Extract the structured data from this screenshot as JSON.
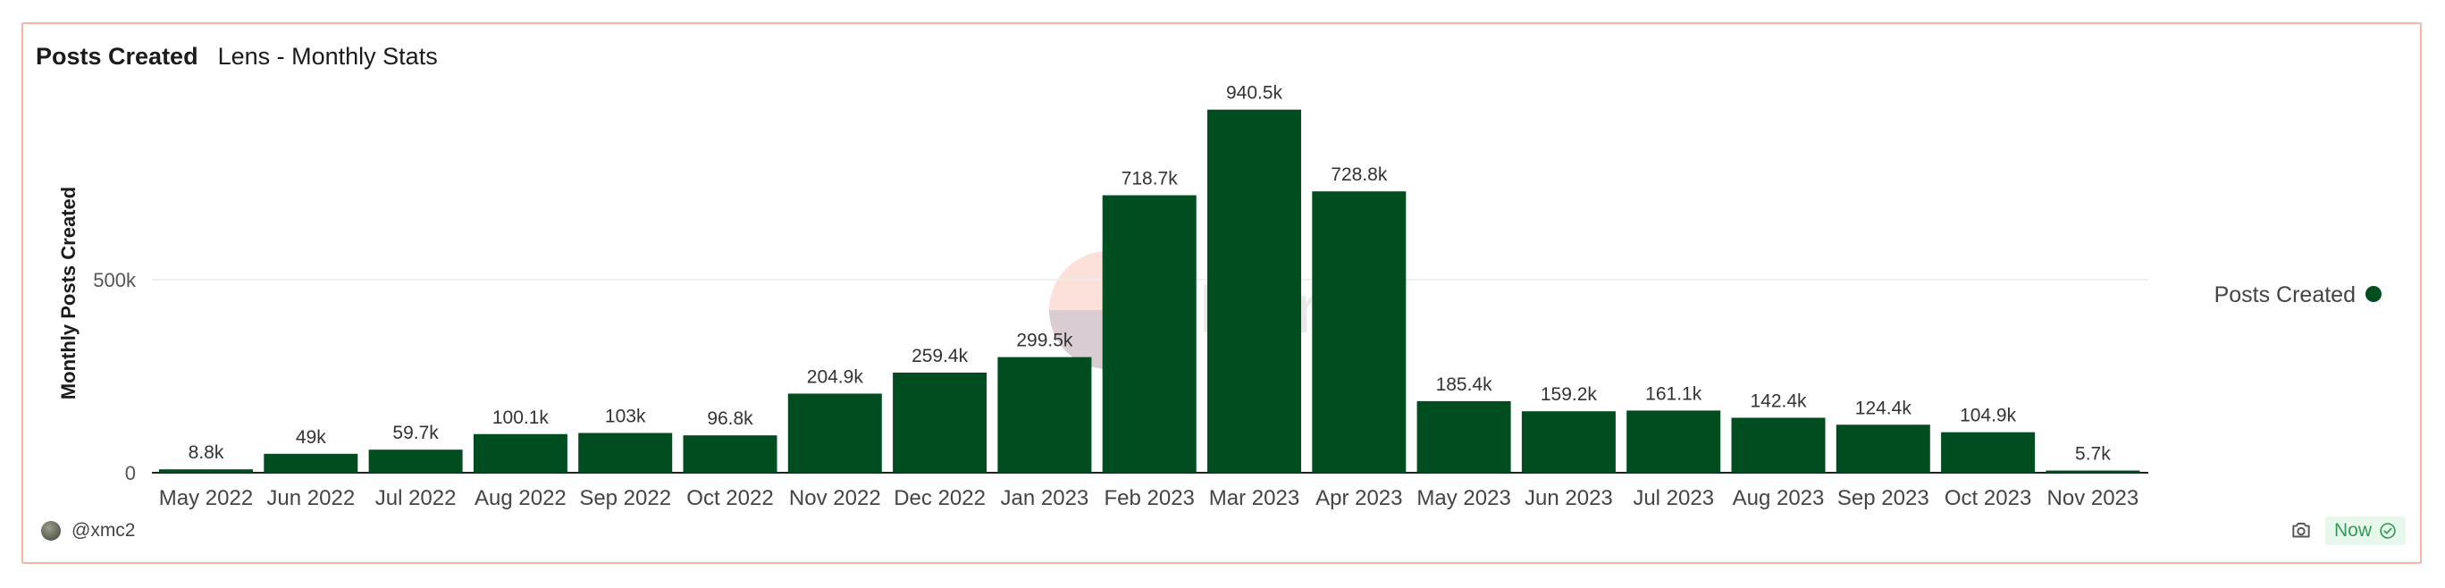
{
  "header": {
    "title": "Posts Created",
    "subtitle": "Lens - Monthly Stats"
  },
  "footer": {
    "author": "@xmc2",
    "status": "Now"
  },
  "icons": {
    "avatar": "avatar-icon",
    "camera": "camera-icon",
    "check": "check-circle-icon"
  },
  "colors": {
    "bar": "#004d1f",
    "accent": "#2e9d55",
    "border": "#f4b5a5"
  },
  "chart_data": {
    "type": "bar",
    "title": "Posts Created",
    "ylabel": "Monthly Posts Created",
    "xlabel": "",
    "ylim": [
      0,
      1000000
    ],
    "yticks": [
      {
        "value": 0,
        "label": "0"
      },
      {
        "value": 500000,
        "label": "500k"
      }
    ],
    "legend": {
      "label": "Posts Created",
      "position": "right"
    },
    "categories": [
      "May 2022",
      "Jun 2022",
      "Jul 2022",
      "Aug 2022",
      "Sep 2022",
      "Oct 2022",
      "Nov 2022",
      "Dec 2022",
      "Jan 2023",
      "Feb 2023",
      "Mar 2023",
      "Apr 2023",
      "May 2023",
      "Jun 2023",
      "Jul 2023",
      "Aug 2023",
      "Sep 2023",
      "Oct 2023",
      "Nov 2023"
    ],
    "values": [
      8800,
      49000,
      59700,
      100100,
      103000,
      96800,
      204900,
      259400,
      299500,
      718700,
      940500,
      728800,
      185400,
      159200,
      161100,
      142400,
      124400,
      104900,
      5700
    ],
    "data_labels": [
      "8.8k",
      "49k",
      "59.7k",
      "100.1k",
      "103k",
      "96.8k",
      "204.9k",
      "259.4k",
      "299.5k",
      "718.7k",
      "940.5k",
      "728.8k",
      "185.4k",
      "159.2k",
      "161.1k",
      "142.4k",
      "124.4k",
      "104.9k",
      "5.7k"
    ],
    "watermark": "Dune"
  }
}
